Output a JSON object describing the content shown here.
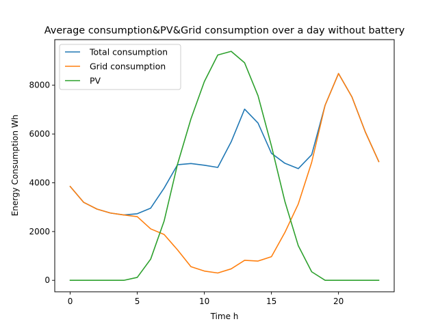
{
  "chart_data": {
    "type": "line",
    "title": "Average consumption&PV&Grid consumption over a day without battery",
    "xlabel": "Time h",
    "ylabel": "Energy Consumption Wh",
    "xlim": [
      -1.15,
      24.15
    ],
    "ylim": [
      -470,
      9870
    ],
    "xticks": [
      0,
      5,
      10,
      15,
      20
    ],
    "yticks": [
      0,
      2000,
      4000,
      6000,
      8000
    ],
    "grid": false,
    "legend_position": "top-left",
    "x": [
      0,
      1,
      2,
      3,
      4,
      5,
      6,
      7,
      8,
      9,
      10,
      11,
      12,
      13,
      14,
      15,
      16,
      17,
      18,
      19,
      20,
      21,
      22,
      23
    ],
    "series": [
      {
        "name": "Total consumption",
        "color": "#1f77b4",
        "values": [
          3850,
          3200,
          2920,
          2760,
          2680,
          2730,
          2960,
          3780,
          4740,
          4790,
          4720,
          4630,
          5680,
          7020,
          6450,
          5210,
          4800,
          4580,
          5150,
          7180,
          8480,
          7520,
          6080,
          4870
        ]
      },
      {
        "name": "Grid consumption",
        "color": "#ff7f0e",
        "values": [
          3850,
          3200,
          2920,
          2760,
          2680,
          2610,
          2110,
          1880,
          1250,
          560,
          380,
          300,
          470,
          820,
          790,
          970,
          1960,
          3130,
          4840,
          7180,
          8480,
          7520,
          6080,
          4870
        ]
      },
      {
        "name": "PV",
        "color": "#2ca02c",
        "values": [
          0,
          0,
          0,
          0,
          0,
          120,
          870,
          2430,
          4760,
          6620,
          8150,
          9240,
          9390,
          8920,
          7570,
          5510,
          3240,
          1420,
          350,
          0,
          0,
          0,
          0,
          0
        ]
      }
    ]
  }
}
